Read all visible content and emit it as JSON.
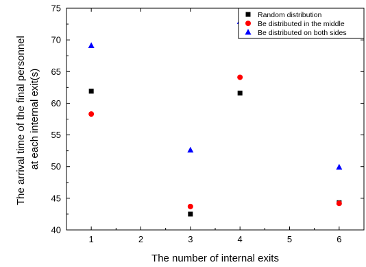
{
  "chart_data": {
    "type": "scatter",
    "xlabel": "The number of internal exits",
    "ylabel_lines": [
      "The arrival time of the final personnel",
      "at each internal exit(s)"
    ],
    "xlim": [
      0.5,
      6.5
    ],
    "ylim": [
      40,
      75
    ],
    "xticks": [
      1,
      2,
      3,
      4,
      5,
      6
    ],
    "yticks": [
      40,
      45,
      50,
      55,
      60,
      65,
      70,
      75
    ],
    "grid": false,
    "legend_position": "top-right",
    "series": [
      {
        "name": "Random distribution",
        "marker": "square",
        "color": "#000000",
        "x": [
          1,
          3,
          4,
          6
        ],
        "y": [
          61.9,
          42.5,
          61.6,
          44.3
        ]
      },
      {
        "name": "Be distributed in the middle",
        "marker": "circle",
        "color": "#ff0000",
        "x": [
          1,
          3,
          4,
          6
        ],
        "y": [
          58.3,
          43.7,
          64.1,
          44.2
        ]
      },
      {
        "name": "Be distributed on both sides",
        "marker": "triangle",
        "color": "#0000ff",
        "x": [
          1,
          3,
          4,
          6
        ],
        "y": [
          69.1,
          52.6,
          72.9,
          49.9
        ]
      }
    ]
  }
}
